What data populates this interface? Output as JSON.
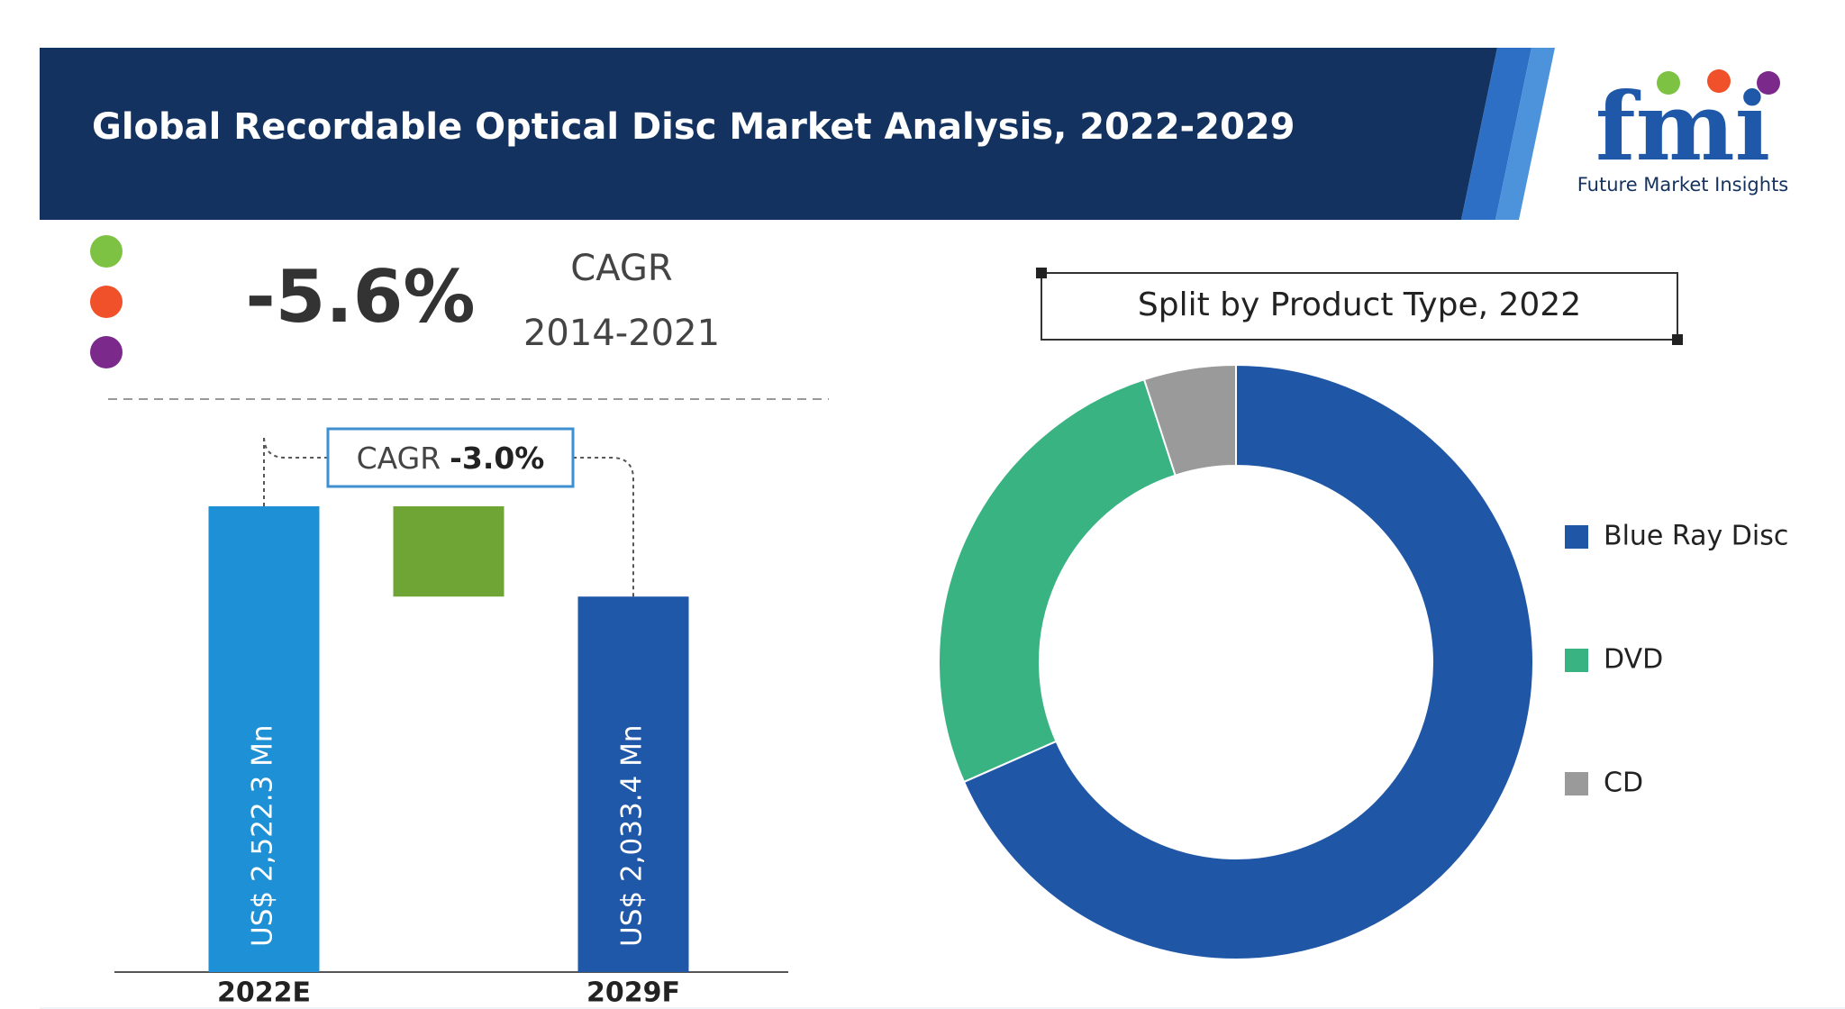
{
  "header": {
    "title": "Global Recordable Optical Disc Market Analysis, 2022-2029",
    "logo": "fmi",
    "logo_subtitle": "Future Market Insights"
  },
  "cagr_history": {
    "value": "-5.6%",
    "label": "CAGR",
    "period": "2014-2021"
  },
  "chart_data": [
    {
      "type": "bar",
      "categories": [
        "2022E",
        "2029F"
      ],
      "values": [
        2522.3,
        2033.4
      ],
      "value_labels": [
        "US$ 2,522.3 Mn",
        "US$ 2,033.4 Mn"
      ],
      "colors": [
        "#1e90d6",
        "#1f58a8"
      ],
      "change_color": "#6fa534",
      "annotation_label": "CAGR",
      "annotation_value": "-3.0%"
    },
    {
      "type": "donut",
      "title": "Split by Product Type, 2022",
      "categories": [
        "Blue Ray Disc",
        "DVD",
        "CD"
      ],
      "values": [
        68.4,
        26.6,
        5.0
      ],
      "colors": [
        "#1f57a6",
        "#3ab383",
        "#9a9a9a"
      ]
    }
  ]
}
